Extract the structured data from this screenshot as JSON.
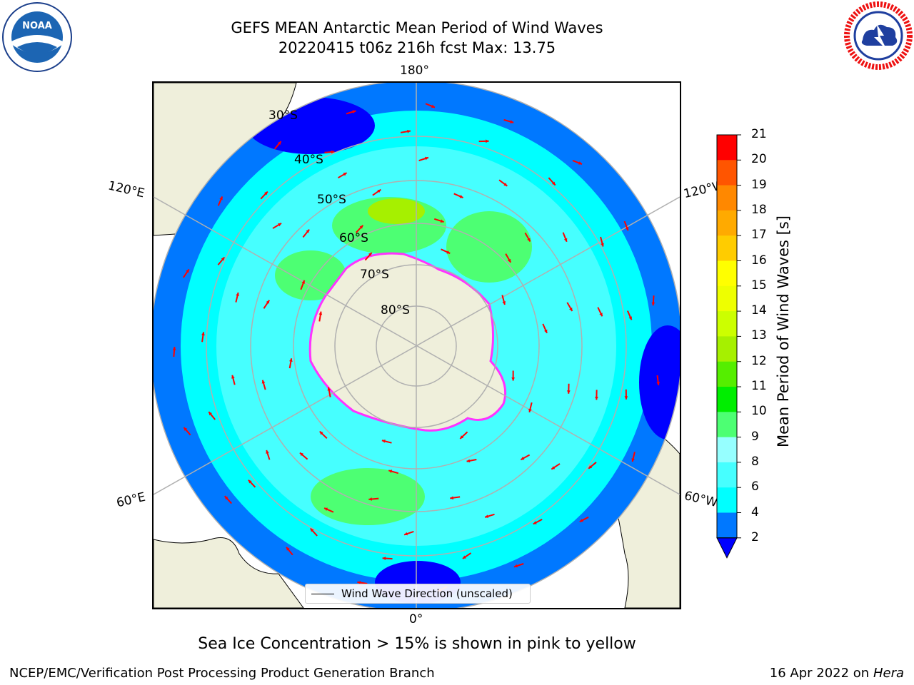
{
  "header": {
    "title_line1": "GEFS MEAN Antarctic Mean Period of Wind Waves",
    "title_line2": "20220415 t06z 216h fcst   Max: 13.75"
  },
  "logos": {
    "left_name": "NOAA",
    "left_ring_text": "NATIONAL OCEANIC AND ATMOSPHERIC ADMINISTRATION · U.S. DEPARTMENT OF COMMERCE",
    "right_ring_text": "NATIONAL WEATHER SERVICE"
  },
  "map": {
    "projection": "south-polar-stereographic",
    "lon_labels": {
      "top": "180°",
      "upper_left": "120°E",
      "upper_right": "120°W",
      "lower_left": "60°E",
      "lower_right": "60°W",
      "bottom": "0°"
    },
    "lat_labels": [
      "30°S",
      "40°S",
      "50°S",
      "60°S",
      "70°S",
      "80°S"
    ],
    "legend_label": "Wind Wave Direction (unscaled)"
  },
  "colorbar": {
    "label": "Mean Period of Wind Waves [s]",
    "ticks": [
      "2",
      "4",
      "6",
      "8",
      "9",
      "10",
      "11",
      "12",
      "13",
      "14",
      "15",
      "16",
      "17",
      "18",
      "19",
      "20",
      "21"
    ],
    "colors": [
      "#0078ff",
      "#00ffff",
      "#46ffff",
      "#96ffff",
      "#4dff73",
      "#00ee00",
      "#55ee00",
      "#a6f000",
      "#ccff00",
      "#eeff00",
      "#ffff00",
      "#ffcc00",
      "#ffaa00",
      "#ff8800",
      "#ff5500",
      "#ff0000"
    ],
    "extend_color": "#0000ff"
  },
  "caption": "Sea Ice Concentration > 15% is shown in pink to yellow",
  "footer": {
    "left": "NCEP/EMC/Verification Post Processing Product Generation Branch",
    "right_date": "16 Apr 2022 on ",
    "right_host": "Hera"
  }
}
